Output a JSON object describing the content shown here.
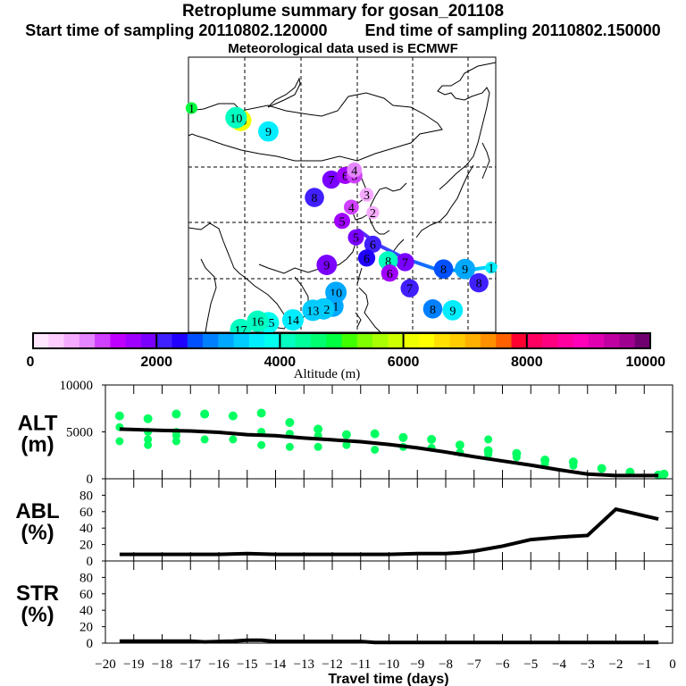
{
  "header": {
    "title": "Retroplume summary for gosan_201108",
    "start_label": "Start time of sampling 20110802.120000",
    "end_label": "End time of sampling 20110802.150000",
    "met_label": "Meteorological data used is ECMWF"
  },
  "colorbar": {
    "label": "Altitude (m)",
    "min": 0,
    "max": 10000,
    "tick_labels": [
      "0",
      "2000",
      "4000",
      "6000",
      "8000",
      "10000"
    ],
    "tick_values": [
      0,
      2000,
      4000,
      6000,
      8000,
      10000
    ],
    "colors": [
      "#ffe6ff",
      "#ffccff",
      "#f5aaff",
      "#e585ff",
      "#d040ff",
      "#c000ff",
      "#a000ff",
      "#7a00ff",
      "#4020ff",
      "#2000ff",
      "#0050ff",
      "#0080ff",
      "#00a8ff",
      "#00ccff",
      "#00eeff",
      "#00ffee",
      "#00ffc0",
      "#00ff9a",
      "#00ff70",
      "#00ff40",
      "#40ff00",
      "#80ff00",
      "#a8ff00",
      "#ccff00",
      "#eeff00",
      "#ffff00",
      "#ffe000",
      "#ffcc00",
      "#ffb000",
      "#ff9000",
      "#ff6000",
      "#ff0030",
      "#ff0060",
      "#ff0080",
      "#ff00a0",
      "#ff00b8",
      "#e000b0",
      "#c000a0",
      "#a00090",
      "#700070"
    ]
  },
  "map": {
    "trajectory_markers": [
      {
        "label": "1",
        "day": 1,
        "lon_x": 0.985,
        "lat_y": 0.765,
        "alt": 3500
      },
      {
        "label": "2",
        "day": 2,
        "lon_x": 0.6,
        "lat_y": 0.565,
        "alt": 500
      },
      {
        "label": "3",
        "day": 3,
        "lon_x": 0.58,
        "lat_y": 0.5,
        "alt": 500
      },
      {
        "label": "4",
        "day": 4,
        "lon_x": 0.53,
        "lat_y": 0.545,
        "alt": 1000
      },
      {
        "label": "5",
        "day": 5,
        "lon_x": 0.5,
        "lat_y": 0.595,
        "alt": 1500
      },
      {
        "label": "5",
        "day": 5,
        "lon_x": 0.545,
        "lat_y": 0.655,
        "alt": 1750
      },
      {
        "label": "6",
        "day": 6,
        "lon_x": 0.6,
        "lat_y": 0.68,
        "alt": 2000
      },
      {
        "label": "6",
        "day": 6,
        "lon_x": 0.58,
        "lat_y": 0.73,
        "alt": 2250
      },
      {
        "label": "7",
        "day": 7,
        "lon_x": 0.705,
        "lat_y": 0.745,
        "alt": 1900
      },
      {
        "label": "7",
        "day": 7,
        "lon_x": 0.72,
        "lat_y": 0.84,
        "alt": 2100
      },
      {
        "label": "8",
        "day": 8,
        "lon_x": 0.83,
        "lat_y": 0.77,
        "alt": 2500
      },
      {
        "label": "8",
        "day": 8,
        "lon_x": 0.795,
        "lat_y": 0.915,
        "alt": 2800
      },
      {
        "label": "9",
        "day": 9,
        "lon_x": 0.9,
        "lat_y": 0.77,
        "alt": 3000
      },
      {
        "label": "9",
        "day": 9,
        "lon_x": 0.86,
        "lat_y": 0.92,
        "alt": 3700
      },
      {
        "label": "10",
        "day": 10,
        "lon_x": 0.48,
        "lat_y": 0.855,
        "alt": 3000
      },
      {
        "label": "11",
        "day": 11,
        "lon_x": 0.47,
        "lat_y": 0.905,
        "alt": 3200
      },
      {
        "label": "12",
        "day": 12,
        "lon_x": 0.44,
        "lat_y": 0.915,
        "alt": 3300
      },
      {
        "label": "13",
        "day": 13,
        "lon_x": 0.405,
        "lat_y": 0.92,
        "alt": 3400
      },
      {
        "label": "14",
        "day": 14,
        "lon_x": 0.34,
        "lat_y": 0.955,
        "alt": 3600
      },
      {
        "label": "15",
        "day": 15,
        "lon_x": 0.26,
        "lat_y": 0.965,
        "alt": 3800
      },
      {
        "label": "16",
        "day": 16,
        "lon_x": 0.225,
        "lat_y": 0.96,
        "alt": 4000
      },
      {
        "label": "17",
        "day": 17,
        "lon_x": 0.17,
        "lat_y": 0.99,
        "alt": 4200
      },
      {
        "label": "19",
        "day": 19,
        "lon_x": 0.17,
        "lat_y": 0.23,
        "alt": 6200
      },
      {
        "label": "10",
        "day": 10,
        "lon_x": 0.155,
        "lat_y": 0.22,
        "alt": 4100
      },
      {
        "label": "1",
        "day": 1,
        "lon_x": 0.01,
        "lat_y": 0.185,
        "alt": 4800
      },
      {
        "label": "9",
        "day": 9,
        "lon_x": 0.26,
        "lat_y": 0.27,
        "alt": 3600
      },
      {
        "label": "7",
        "day": 7,
        "lon_x": 0.465,
        "lat_y": 0.445,
        "alt": 1900
      },
      {
        "label": "6",
        "day": 6,
        "lon_x": 0.51,
        "lat_y": 0.43,
        "alt": 1500
      },
      {
        "label": "5",
        "day": 5,
        "lon_x": 0.54,
        "lat_y": 0.43,
        "alt": 1000
      },
      {
        "label": "4",
        "day": 4,
        "lon_x": 0.54,
        "lat_y": 0.41,
        "alt": 900
      },
      {
        "label": "8",
        "day": 8,
        "lon_x": 0.41,
        "lat_y": 0.51,
        "alt": 2100
      },
      {
        "label": "9",
        "day": 9,
        "lon_x": 0.45,
        "lat_y": 0.755,
        "alt": 1900
      },
      {
        "label": "8",
        "day": 8,
        "lon_x": 0.65,
        "lat_y": 0.74,
        "alt": 4000
      },
      {
        "label": "6",
        "day": 6,
        "lon_x": 0.655,
        "lat_y": 0.785,
        "alt": 1500
      },
      {
        "label": "8",
        "day": 8,
        "lon_x": 0.945,
        "lat_y": 0.82,
        "alt": 2000
      }
    ],
    "track_line_description": "centroid track from Korea (~day 5) southeast to day 1 at east edge"
  },
  "chart_data": [
    {
      "type": "line",
      "panel": "ALT",
      "ylabel": "ALT\n(m)",
      "ylabel_line1": "ALT",
      "ylabel_line2": "(m)",
      "ylim": [
        0,
        10000
      ],
      "ytick_labels": [
        "10000",
        "5000",
        "0"
      ],
      "ytick_values": [
        10000,
        5000,
        0
      ],
      "xlim": [
        -20,
        0
      ],
      "x": [
        -19.5,
        -19,
        -18,
        -17,
        -16,
        -15,
        -14,
        -13,
        -12,
        -11,
        -10,
        -9,
        -8,
        -7,
        -6,
        -5,
        -4,
        -3,
        -2,
        -1,
        -0.5
      ],
      "mean_line": [
        5300,
        5250,
        5150,
        5100,
        4950,
        4700,
        4600,
        4350,
        4150,
        3950,
        3650,
        3300,
        2850,
        2350,
        1900,
        1450,
        950,
        500,
        350,
        350,
        350
      ],
      "scatter_color": "#00ff60",
      "scatter": [
        {
          "x": -19.5,
          "y": [
            6700,
            5500,
            4000
          ]
        },
        {
          "x": -18.5,
          "y": [
            6400,
            5000,
            4200,
            3600
          ]
        },
        {
          "x": -17.5,
          "y": [
            6900,
            5000,
            4600,
            4000
          ]
        },
        {
          "x": -16.5,
          "y": [
            6900,
            4200
          ]
        },
        {
          "x": -15.5,
          "y": [
            6700,
            4200
          ]
        },
        {
          "x": -14.5,
          "y": [
            7000,
            5000,
            3600
          ]
        },
        {
          "x": -13.5,
          "y": [
            6000,
            4800,
            3400
          ]
        },
        {
          "x": -12.5,
          "y": [
            5300,
            4600,
            3400
          ]
        },
        {
          "x": -11.5,
          "y": [
            4700,
            3600
          ]
        },
        {
          "x": -10.5,
          "y": [
            4800,
            3100
          ]
        },
        {
          "x": -9.5,
          "y": [
            4400,
            3400
          ]
        },
        {
          "x": -8.5,
          "y": [
            4200,
            3300
          ]
        },
        {
          "x": -7.5,
          "y": [
            3600,
            2800
          ]
        },
        {
          "x": -6.5,
          "y": [
            3000,
            4200,
            2600
          ]
        },
        {
          "x": -5.5,
          "y": [
            2700,
            2300
          ]
        },
        {
          "x": -4.5,
          "y": [
            2000,
            1600
          ]
        },
        {
          "x": -3.5,
          "y": [
            1800,
            1400
          ]
        },
        {
          "x": -2.5,
          "y": [
            1100
          ]
        },
        {
          "x": -1.5,
          "y": [
            700
          ]
        },
        {
          "x": -0.5,
          "y": [
            400
          ]
        },
        {
          "x": -0.3,
          "y": [
            500
          ]
        }
      ]
    },
    {
      "type": "line",
      "panel": "ABL",
      "ylabel_line1": "ABL",
      "ylabel_line2": "(%)",
      "ylim": [
        0,
        100
      ],
      "ytick_labels": [
        "80",
        "60",
        "40",
        "20",
        "0"
      ],
      "ytick_values": [
        80,
        60,
        40,
        20,
        0
      ],
      "xlim": [
        -20,
        0
      ],
      "x": [
        -19.5,
        -18,
        -16,
        -15,
        -14,
        -12,
        -10,
        -9,
        -8,
        -7.5,
        -7,
        -6,
        -5,
        -4,
        -3.5,
        -3,
        -2,
        -1.5,
        -1,
        -0.5
      ],
      "values": [
        8,
        8,
        8,
        9,
        8,
        8,
        8,
        9,
        9,
        10,
        12,
        18,
        26,
        29,
        30,
        31,
        63,
        59,
        55,
        51
      ]
    },
    {
      "type": "line",
      "panel": "STR",
      "ylabel_line1": "STR",
      "ylabel_line2": "(%)",
      "ylim": [
        0,
        100
      ],
      "ytick_labels": [
        "80",
        "60",
        "40",
        "20",
        "0"
      ],
      "ytick_values": [
        80,
        60,
        40,
        20,
        0
      ],
      "xlim": [
        -20,
        0
      ],
      "xlabel": "Travel time (days)",
      "xtick_labels": [
        "-20",
        "-19",
        "-18",
        "-17",
        "-16",
        "-15",
        "-14",
        "-13",
        "-12",
        "-11",
        "-10",
        "-9",
        "-8",
        "-7",
        "-6",
        "-5",
        "-4",
        "-3",
        "-2",
        "-1",
        "0"
      ],
      "xtick_values": [
        -20,
        -19,
        -18,
        -17,
        -16,
        -15,
        -14,
        -13,
        -12,
        -11,
        -10,
        -9,
        -8,
        -7,
        -6,
        -5,
        -4,
        -3,
        -2,
        -1,
        0
      ],
      "x": [
        -19.5,
        -17,
        -16.5,
        -15.5,
        -15,
        -14.5,
        -14,
        -11,
        -10.5,
        -0.5
      ],
      "values": [
        2.5,
        2.5,
        1.5,
        2.5,
        3.5,
        3.5,
        2,
        2,
        0.8,
        0.8
      ]
    }
  ]
}
